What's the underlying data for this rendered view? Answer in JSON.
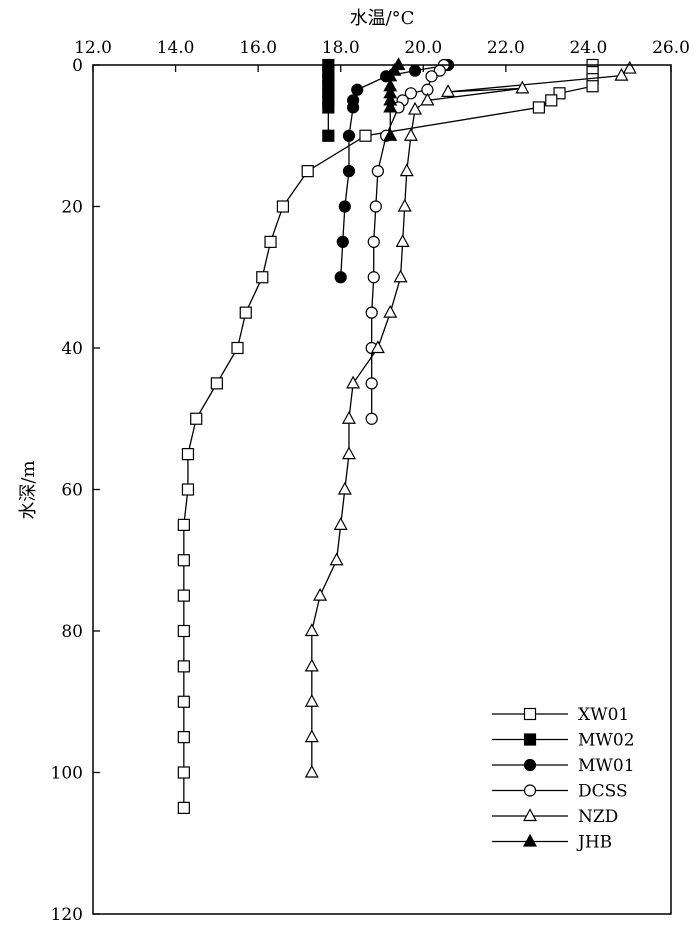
{
  "chart_data": {
    "type": "line",
    "xlabel": "水温/°C",
    "ylabel": "水深/m",
    "xlim": [
      12.0,
      26.0
    ],
    "ylim": [
      0,
      120
    ],
    "y_inverted": true,
    "x_axis_position": "top",
    "grid": false,
    "legend_position": "bottom-right",
    "x_ticks": [
      "12.0",
      "14.0",
      "16.0",
      "18.0",
      "20.0",
      "22.0",
      "24.0",
      "26.0"
    ],
    "y_ticks": [
      "0",
      "20",
      "40",
      "60",
      "80",
      "100",
      "120"
    ],
    "series": [
      {
        "name": "XW01",
        "marker": "open-square",
        "points": [
          [
            24.1,
            0
          ],
          [
            24.1,
            1
          ],
          [
            24.1,
            2
          ],
          [
            24.1,
            3
          ],
          [
            23.3,
            4
          ],
          [
            23.1,
            5
          ],
          [
            22.8,
            6
          ],
          [
            18.6,
            10
          ],
          [
            17.2,
            15
          ],
          [
            16.6,
            20
          ],
          [
            16.3,
            25
          ],
          [
            16.1,
            30
          ],
          [
            15.7,
            35
          ],
          [
            15.5,
            40
          ],
          [
            15.0,
            45
          ],
          [
            14.5,
            50
          ],
          [
            14.3,
            55
          ],
          [
            14.3,
            60
          ],
          [
            14.2,
            65
          ],
          [
            14.2,
            70
          ],
          [
            14.2,
            75
          ],
          [
            14.2,
            80
          ],
          [
            14.2,
            85
          ],
          [
            14.2,
            90
          ],
          [
            14.2,
            95
          ],
          [
            14.2,
            100
          ],
          [
            14.2,
            105
          ]
        ]
      },
      {
        "name": "MW02",
        "marker": "filled-square",
        "points": [
          [
            17.7,
            0
          ],
          [
            17.7,
            1
          ],
          [
            17.7,
            2
          ],
          [
            17.7,
            3
          ],
          [
            17.7,
            4
          ],
          [
            17.7,
            5
          ],
          [
            17.7,
            6
          ],
          [
            17.7,
            10
          ]
        ]
      },
      {
        "name": "MW01",
        "marker": "filled-circle",
        "points": [
          [
            20.6,
            0
          ],
          [
            19.8,
            0.8
          ],
          [
            19.1,
            1.6
          ],
          [
            18.4,
            3.5
          ],
          [
            18.3,
            5
          ],
          [
            18.3,
            6
          ],
          [
            18.2,
            10
          ],
          [
            18.2,
            15
          ],
          [
            18.1,
            20
          ],
          [
            18.05,
            25
          ],
          [
            18.0,
            30
          ]
        ]
      },
      {
        "name": "DCSS",
        "marker": "open-circle",
        "points": [
          [
            20.5,
            0
          ],
          [
            20.4,
            0.8
          ],
          [
            20.2,
            1.6
          ],
          [
            20.1,
            3.5
          ],
          [
            19.7,
            4
          ],
          [
            19.5,
            5
          ],
          [
            19.4,
            6
          ],
          [
            19.1,
            10
          ],
          [
            18.9,
            15
          ],
          [
            18.85,
            20
          ],
          [
            18.8,
            25
          ],
          [
            18.8,
            30
          ],
          [
            18.75,
            35
          ],
          [
            18.75,
            40
          ],
          [
            18.75,
            45
          ],
          [
            18.75,
            50
          ]
        ]
      },
      {
        "name": "NZD",
        "marker": "open-triangle",
        "points": [
          [
            25.0,
            0.5
          ],
          [
            24.8,
            1.5
          ],
          [
            20.6,
            3.8
          ],
          [
            22.4,
            3.3
          ],
          [
            20.1,
            5
          ],
          [
            19.8,
            6.3
          ],
          [
            19.7,
            10
          ],
          [
            19.6,
            15
          ],
          [
            19.55,
            20
          ],
          [
            19.5,
            25
          ],
          [
            19.45,
            30
          ],
          [
            19.2,
            35
          ],
          [
            18.9,
            40
          ],
          [
            18.3,
            45
          ],
          [
            18.2,
            50
          ],
          [
            18.2,
            55
          ],
          [
            18.1,
            60
          ],
          [
            18.0,
            65
          ],
          [
            17.9,
            70
          ],
          [
            17.5,
            75
          ],
          [
            17.3,
            80
          ],
          [
            17.3,
            85
          ],
          [
            17.3,
            90
          ],
          [
            17.3,
            95
          ],
          [
            17.3,
            100
          ]
        ]
      },
      {
        "name": "JHB",
        "marker": "filled-triangle",
        "points": [
          [
            19.4,
            0
          ],
          [
            19.3,
            0.8
          ],
          [
            19.2,
            1.6
          ],
          [
            19.2,
            3
          ],
          [
            19.2,
            4
          ],
          [
            19.2,
            5
          ],
          [
            19.2,
            6
          ],
          [
            19.2,
            10
          ]
        ]
      }
    ]
  }
}
